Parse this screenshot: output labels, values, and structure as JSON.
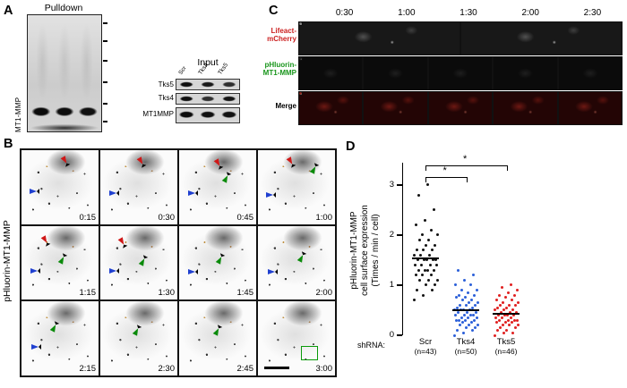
{
  "panels": {
    "a": "A",
    "b": "B",
    "c": "C",
    "d": "D"
  },
  "panel_a": {
    "pulldown_title": "Pulldown",
    "pulldown_side_label": "MT1-MMP",
    "input_title": "Input",
    "input_lane_labels": [
      "Scr",
      "Tks4",
      "Tks5"
    ],
    "input_row_labels": [
      "Tks5",
      "Tks4",
      "MT1MMP"
    ]
  },
  "panel_b": {
    "side_label": "pHluorin-MT1-MMP",
    "frames": [
      {
        "time": "0:15",
        "markers": [
          {
            "type": "red-arrow",
            "x": 54,
            "y": 8
          },
          {
            "type": "blue-arrowhead",
            "x": 10,
            "y": 52
          }
        ]
      },
      {
        "time": "0:30",
        "markers": [
          {
            "type": "red-arrow",
            "x": 50,
            "y": 10
          },
          {
            "type": "blue-arrowhead",
            "x": 12,
            "y": 55
          }
        ]
      },
      {
        "time": "0:45",
        "markers": [
          {
            "type": "red-arrow",
            "x": 48,
            "y": 12
          },
          {
            "type": "blue-arrowhead",
            "x": 12,
            "y": 55
          },
          {
            "type": "green-arrow",
            "x": 58,
            "y": 30
          }
        ]
      },
      {
        "time": "1:00",
        "markers": [
          {
            "type": "red-arrow",
            "x": 40,
            "y": 10
          },
          {
            "type": "green-arrow",
            "x": 70,
            "y": 18
          },
          {
            "type": "blue-arrowhead",
            "x": 10,
            "y": 57
          }
        ]
      },
      {
        "time": "1:15",
        "markers": [
          {
            "type": "red-arrow",
            "x": 28,
            "y": 14
          },
          {
            "type": "blue-arrowhead",
            "x": 12,
            "y": 57
          },
          {
            "type": "green-arrow",
            "x": 50,
            "y": 38
          }
        ]
      },
      {
        "time": "1:30",
        "markers": [
          {
            "type": "red-arrow",
            "x": 26,
            "y": 16
          },
          {
            "type": "blue-arrowhead",
            "x": 12,
            "y": 57
          },
          {
            "type": "green-arrow",
            "x": 52,
            "y": 40
          }
        ]
      },
      {
        "time": "1:45",
        "markers": [
          {
            "type": "blue-arrowhead",
            "x": 12,
            "y": 58
          },
          {
            "type": "green-arrow",
            "x": 50,
            "y": 38
          }
        ]
      },
      {
        "time": "2:00",
        "markers": [
          {
            "type": "blue-arrowhead",
            "x": 13,
            "y": 58
          },
          {
            "type": "green-arrow",
            "x": 54,
            "y": 36
          }
        ]
      },
      {
        "time": "2:15",
        "markers": [
          {
            "type": "blue-arrowhead",
            "x": 13,
            "y": 58
          },
          {
            "type": "green-arrow",
            "x": 40,
            "y": 28
          }
        ]
      },
      {
        "time": "2:30",
        "markers": [
          {
            "type": "green-arrow",
            "x": 44,
            "y": 32
          }
        ]
      },
      {
        "time": "2:45",
        "markers": [
          {
            "type": "green-arrow",
            "x": 46,
            "y": 32
          }
        ]
      },
      {
        "time": "3:00",
        "markers": [
          {
            "type": "green-box",
            "x": 56,
            "y": 60
          },
          {
            "type": "scale-bar",
            "x": 8,
            "y": 88
          }
        ]
      }
    ]
  },
  "panel_c": {
    "timestamps": [
      "0:30",
      "1:00",
      "1:30",
      "2:00",
      "2:30"
    ],
    "frames_per_row": 10,
    "rows": [
      {
        "label_lines": [
          "Lifeact-",
          "mCherry"
        ],
        "label_color": "#cc2020",
        "style": "lifeact",
        "dot_frames": [
          1,
          2,
          3,
          4,
          5,
          6,
          7,
          8
        ]
      },
      {
        "label_lines": [
          "pHluorin-",
          "MT1-MMP"
        ],
        "label_color": "#18951b",
        "style": "phluorin",
        "dot_frames": [
          3,
          4,
          5,
          6,
          7
        ]
      },
      {
        "label_lines": [
          "Merge",
          ""
        ],
        "label_color": "#000000",
        "style": "merge",
        "dot_frames": [
          3,
          4,
          5,
          6,
          7
        ]
      }
    ]
  },
  "chart_data": {
    "type": "scatter",
    "title": "",
    "ylabel_lines": [
      "pHluorin-MT1-MMP",
      "cell surface expression",
      "(Times / min / cell)"
    ],
    "xlabel_prefix": "shRNA:",
    "ylim": [
      0,
      3
    ],
    "yticks": [
      0,
      1,
      2,
      3
    ],
    "grid": false,
    "groups": [
      {
        "name": "Scr",
        "n_label": "(n=43)",
        "color": "#111111",
        "values": [
          0.7,
          0.8,
          0.9,
          0.9,
          1.0,
          1.0,
          1.1,
          1.1,
          1.1,
          1.2,
          1.2,
          1.2,
          1.3,
          1.3,
          1.3,
          1.3,
          1.4,
          1.4,
          1.4,
          1.4,
          1.5,
          1.5,
          1.5,
          1.5,
          1.5,
          1.6,
          1.6,
          1.6,
          1.7,
          1.7,
          1.7,
          1.8,
          1.8,
          1.9,
          1.9,
          2.0,
          2.0,
          2.1,
          2.2,
          2.3,
          2.5,
          2.8,
          3.0
        ]
      },
      {
        "name": "Tks4",
        "n_label": "(n=50)",
        "color": "#2b5fd9",
        "values": [
          0.0,
          0.05,
          0.1,
          0.1,
          0.15,
          0.15,
          0.2,
          0.2,
          0.2,
          0.25,
          0.25,
          0.3,
          0.3,
          0.3,
          0.3,
          0.35,
          0.35,
          0.35,
          0.4,
          0.4,
          0.4,
          0.4,
          0.45,
          0.45,
          0.45,
          0.5,
          0.5,
          0.5,
          0.5,
          0.55,
          0.55,
          0.6,
          0.6,
          0.6,
          0.65,
          0.65,
          0.7,
          0.7,
          0.75,
          0.75,
          0.8,
          0.8,
          0.85,
          0.9,
          0.9,
          1.0,
          1.0,
          1.1,
          1.2,
          1.3
        ]
      },
      {
        "name": "Tks5",
        "n_label": "(n=46)",
        "color": "#e02020",
        "values": [
          0.0,
          0.05,
          0.05,
          0.1,
          0.1,
          0.15,
          0.15,
          0.2,
          0.2,
          0.2,
          0.25,
          0.25,
          0.25,
          0.3,
          0.3,
          0.3,
          0.3,
          0.35,
          0.35,
          0.35,
          0.4,
          0.4,
          0.4,
          0.4,
          0.45,
          0.45,
          0.45,
          0.5,
          0.5,
          0.5,
          0.55,
          0.55,
          0.6,
          0.6,
          0.6,
          0.65,
          0.65,
          0.7,
          0.7,
          0.75,
          0.8,
          0.8,
          0.85,
          0.9,
          0.95,
          1.0
        ]
      }
    ],
    "comparisons": [
      {
        "from": 0,
        "to": 1,
        "label": "*"
      },
      {
        "from": 0,
        "to": 2,
        "label": "*"
      }
    ]
  }
}
